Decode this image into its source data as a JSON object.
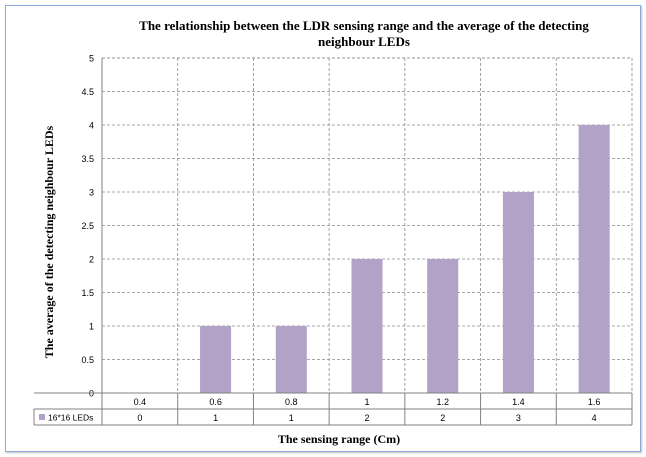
{
  "chart_data": {
    "type": "bar",
    "title": "The relationship between the LDR sensing range and the average of the detecting neighbour LEDs",
    "title_lines": [
      "The relationship between the LDR sensing range and the average of the detecting",
      "neighbour LEDs"
    ],
    "xlabel": "The sensing range (Cm)",
    "ylabel": "The average of the detecting neighbour  LEDs",
    "categories": [
      "0.4",
      "0.6",
      "0.8",
      "1",
      "1.2",
      "1.4",
      "1.6"
    ],
    "series": [
      {
        "name": "16*16 LEDs",
        "values": [
          0,
          1,
          1,
          2,
          2,
          3,
          4
        ],
        "color": "#b3a2c7"
      }
    ],
    "data_table_values": [
      "0",
      "1",
      "1",
      "2",
      "2",
      "3",
      "4"
    ],
    "ylim": [
      0,
      5
    ],
    "yticks": [
      "0",
      "0.5",
      "1",
      "1.5",
      "2",
      "2.5",
      "3",
      "3.5",
      "4",
      "4.5",
      "5"
    ],
    "grid": true,
    "grid_style": "dashed",
    "legend": "data-table"
  }
}
